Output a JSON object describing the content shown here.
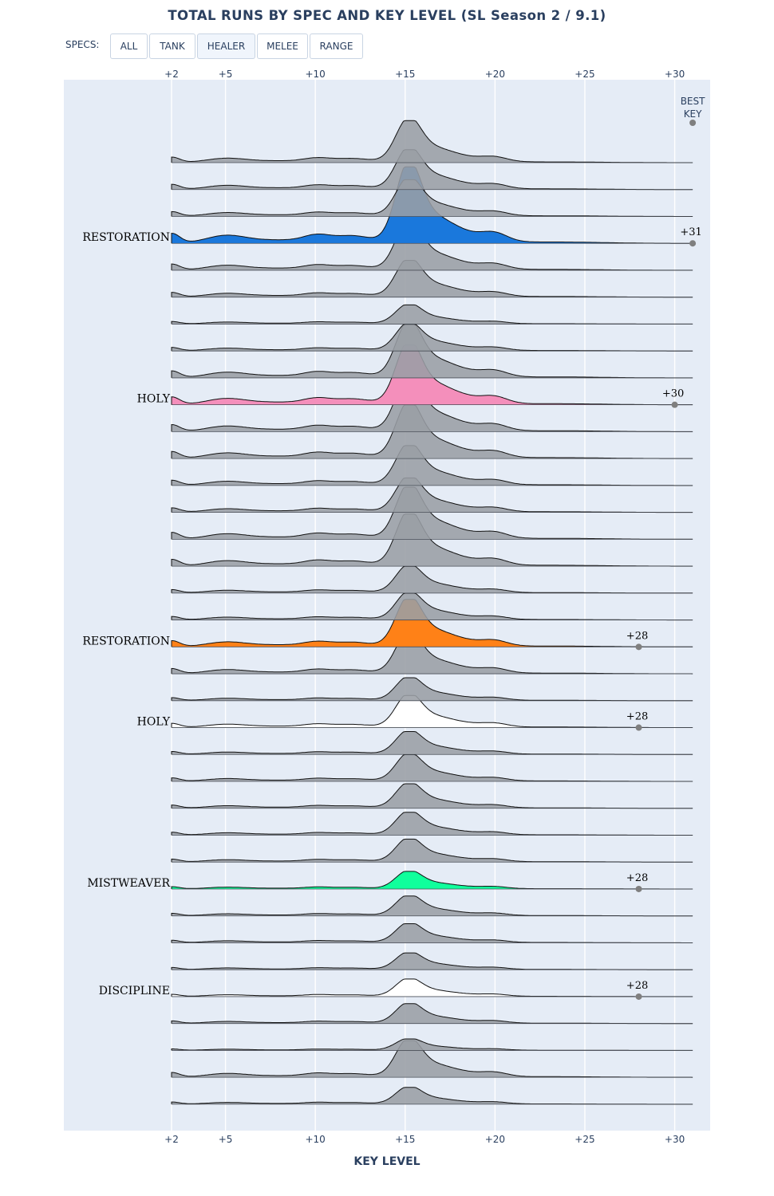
{
  "title": "TOTAL RUNS BY SPEC AND KEY LEVEL (SL Season 2 / 9.1)",
  "controls": {
    "specs_label": "SPECS:",
    "buttons": [
      "ALL",
      "TANK",
      "HEALER",
      "MELEE",
      "RANGE"
    ],
    "active": "HEALER"
  },
  "chart_data": {
    "type": "area",
    "chart_style": "ridgeline",
    "xlabel": "KEY LEVEL",
    "xlim": [
      2,
      31
    ],
    "x_ticks": [
      2,
      5,
      10,
      15,
      20,
      25,
      30
    ],
    "x_tick_labels": [
      "+2",
      "+5",
      "+10",
      "+15",
      "+20",
      "+25",
      "+30"
    ],
    "x_ticks_top": true,
    "grid": true,
    "best_key_legend": "BEST KEY",
    "best_key_legend_lines": [
      "BEST",
      "KEY"
    ],
    "row_count": 36,
    "colors": {
      "plot_bg": "#e5ecf6",
      "gray_fill": "#9a9ea5",
      "line": "#111111",
      "marker": "#7f7f7f"
    },
    "series": [
      {
        "name": "RESTORATION",
        "row": 3,
        "color": "#1a78dc",
        "best_key": 31,
        "best_key_label": "+31",
        "peak": 1.0
      },
      {
        "name": "HOLY",
        "row": 9,
        "color": "#f48fbb",
        "best_key": 30,
        "best_key_label": "+30",
        "peak": 0.78
      },
      {
        "name": "RESTORATION",
        "row": 18,
        "color": "#ff8117",
        "best_key": 28,
        "best_key_label": "+28",
        "peak": 0.62
      },
      {
        "name": "HOLY",
        "row": 21,
        "color": "#ffffff",
        "best_key": 28,
        "best_key_label": "+28",
        "peak": 0.42
      },
      {
        "name": "MISTWEAVER",
        "row": 27,
        "color": "#10ff9c",
        "best_key": 28,
        "best_key_label": "+28",
        "peak": 0.23
      },
      {
        "name": "DISCIPLINE",
        "row": 31,
        "color": "#ffffff",
        "best_key": 28,
        "best_key_label": "+28",
        "peak": 0.23
      }
    ],
    "gray_peaks": [
      0.55,
      0.52,
      0.48,
      0.62,
      0.48,
      0.25,
      0.35,
      0.7,
      0.7,
      0.7,
      0.52,
      0.45,
      0.68,
      0.68,
      0.35,
      0.35,
      0.52,
      0.3,
      0.3,
      0.35,
      0.32,
      0.3,
      0.3,
      0.26,
      0.25,
      0.22,
      0.26,
      0.15,
      0.48,
      0.22,
      0.15,
      0.16,
      0.12,
      0.4
    ]
  }
}
